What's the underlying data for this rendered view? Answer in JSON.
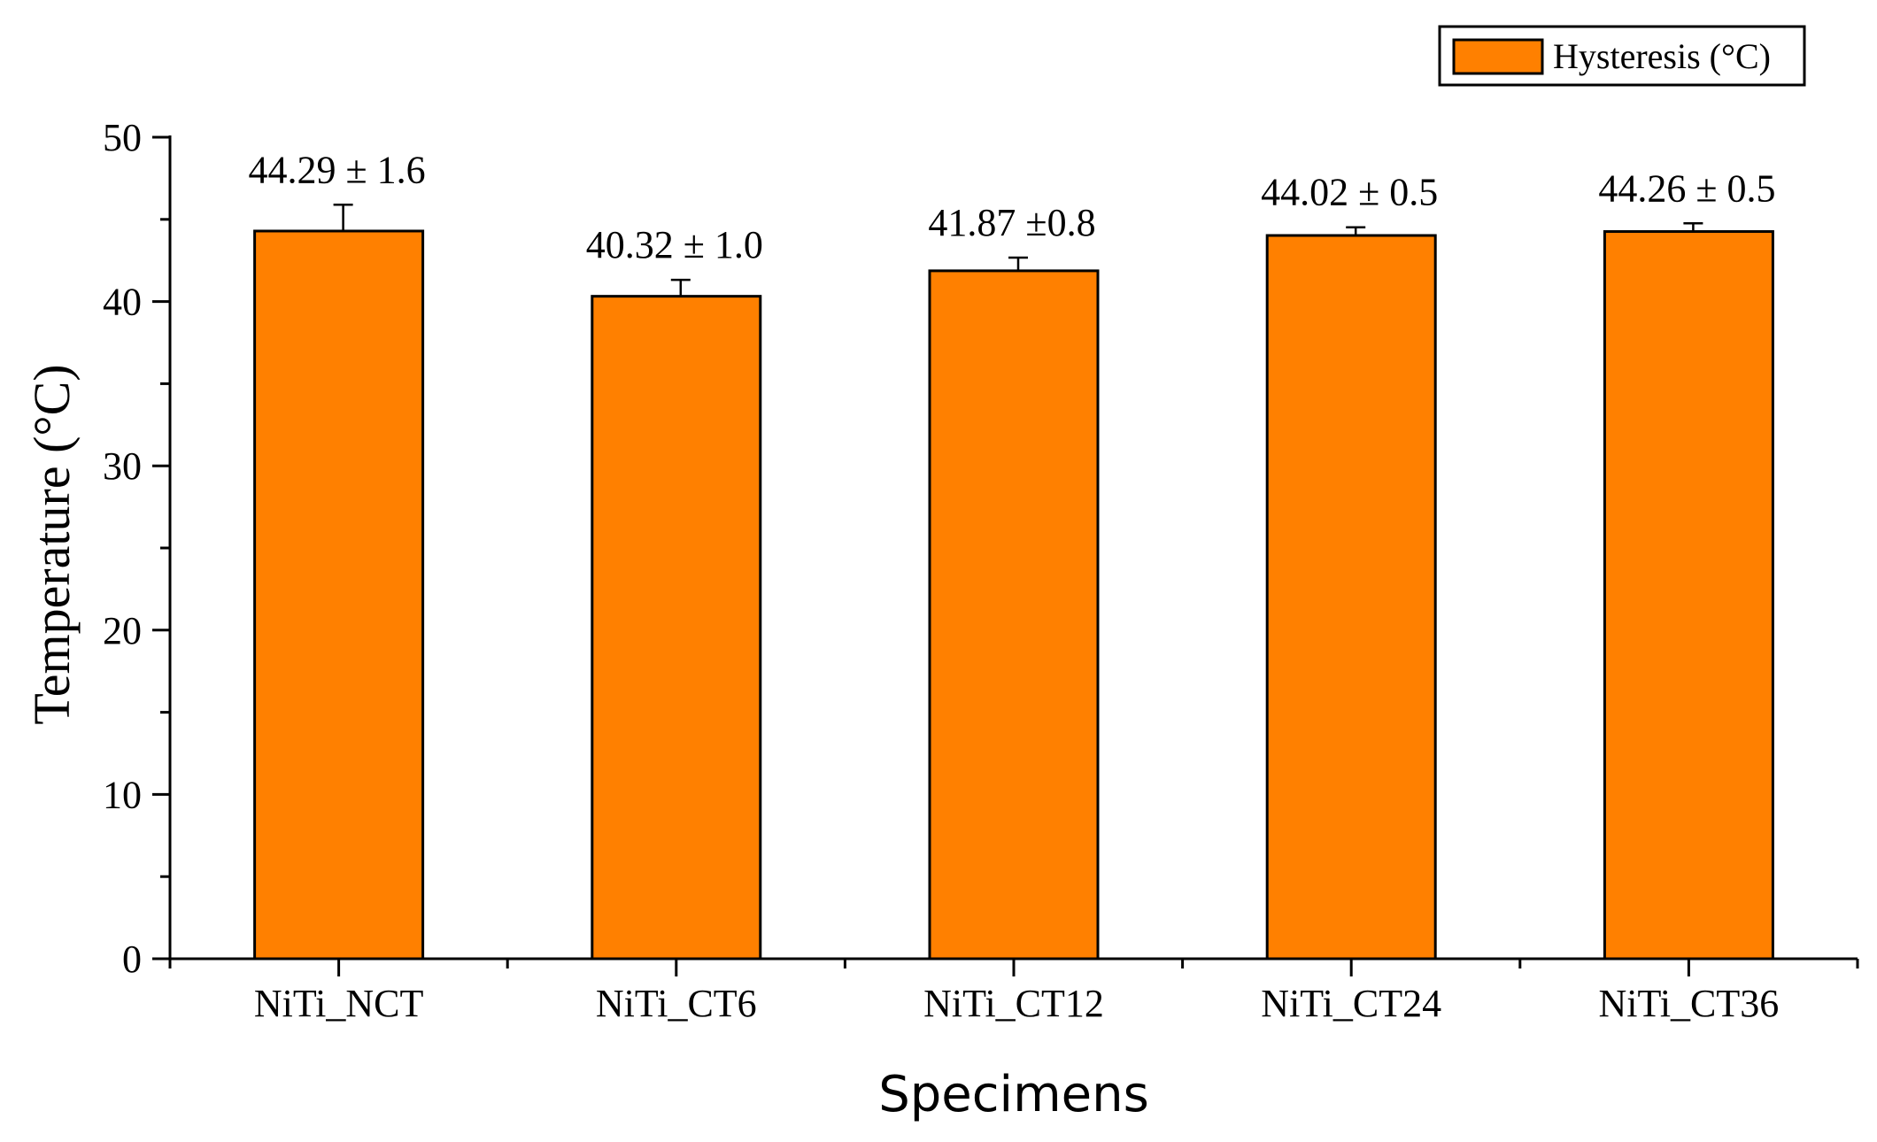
{
  "chart_data": {
    "type": "bar",
    "categories": [
      "NiTi_NCT",
      "NiTi_CT6",
      "NiTi_CT12",
      "NiTi_CT24",
      "NiTi_CT36"
    ],
    "series": [
      {
        "name": "Hysteresis (°C)",
        "values": [
          44.29,
          40.32,
          41.87,
          44.02,
          44.26
        ],
        "errors": [
          1.6,
          1.0,
          0.8,
          0.5,
          0.5
        ]
      }
    ],
    "data_labels": [
      "44.29 ± 1.6",
      "40.32 ± 1.0",
      "41.87 ±0.8",
      "44.02 ± 0.5",
      "44.26 ± 0.5"
    ],
    "xlabel": "Specimens",
    "ylabel": "Temperature (°C)",
    "ylim": [
      0,
      50
    ],
    "yticks": [
      0,
      10,
      20,
      30,
      40,
      50
    ],
    "grid": false,
    "legend_position": "top-right",
    "colors": {
      "bar_fill": "#FF8000",
      "bar_stroke": "#000000",
      "axis": "#000000"
    }
  }
}
